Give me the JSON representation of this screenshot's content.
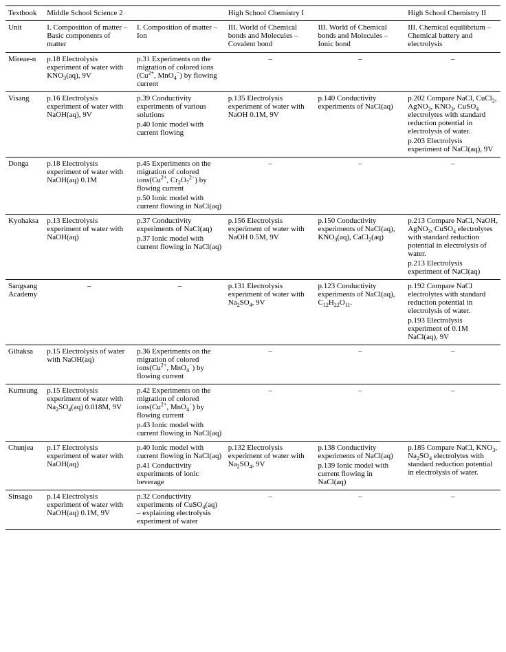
{
  "table": {
    "col_widths": [
      "56px",
      "130px",
      "132px",
      "130px",
      "130px",
      "138px"
    ],
    "header_top": {
      "textbook": "Textbook",
      "groups": [
        {
          "label": "Middle School Science 2",
          "span": 2
        },
        {
          "label": "High School Chemistry I",
          "span": 2
        },
        {
          "label": "High School Chemistry II",
          "span": 1
        }
      ]
    },
    "unit_row": {
      "label": "Unit",
      "cells": [
        "I. Composition of matter – Basic components of matter",
        "I. Composition of matter – Ion",
        "III. World of Chemical bonds and Molecules – Covalent bond",
        "III. World of Chemical bonds and Molecules – Ionic bond",
        "III. Chemical equilibrium – Chemical battery and electrolysis"
      ]
    },
    "rows": [
      {
        "textbook": "Mireae-n",
        "cells": [
          [
            {
              "t": "p.18 Electrolysis experiment of water with KNO"
            },
            {
              "sub": "3"
            },
            {
              "t": "(aq), 9V"
            }
          ],
          [
            {
              "t": "p.31 Experiments on the migration of colored ions (Cu"
            },
            {
              "sup": "2+"
            },
            {
              "t": ", MnO"
            },
            {
              "sub": "4"
            },
            {
              "sup": "−"
            },
            {
              "t": ") by flowing current"
            }
          ],
          "–",
          "–",
          "–"
        ]
      },
      {
        "textbook": "Visang",
        "cells": [
          [
            {
              "t": "p.16 Electrolysis experiment of water with NaOH(aq), 9V"
            }
          ],
          [
            {
              "t": "p.39 Conductivity experiments of various solutions"
            },
            {
              "br": true
            },
            {
              "t": "p.40 Ionic model with current flowing"
            }
          ],
          [
            {
              "t": "p.135 Electrolysis experiment of water with NaOH 0.1M, 9V"
            }
          ],
          [
            {
              "t": "p.140 Conductivity experiments of NaCl(aq)"
            }
          ],
          [
            {
              "t": "p.202 Compare NaCl, CuCl"
            },
            {
              "sub": "2"
            },
            {
              "t": ", AgNO"
            },
            {
              "sub": "3"
            },
            {
              "t": ", KNO"
            },
            {
              "sub": "3"
            },
            {
              "t": ", CuSO"
            },
            {
              "sub": "4"
            },
            {
              "t": " electrolytes with standard reduction potential in electrolysis of water."
            },
            {
              "br": true
            },
            {
              "t": "p.203 Electrolysis experiment of NaCl(aq), 9V"
            }
          ]
        ]
      },
      {
        "textbook": "Donga",
        "cells": [
          [
            {
              "t": "p.18 Electrolysis experiment of water with NaOH(aq) 0.1M"
            }
          ],
          [
            {
              "t": "p.45 Experiments on the migration of colored ions(Cu"
            },
            {
              "sup": "2+"
            },
            {
              "t": ", Cr"
            },
            {
              "sub": "2"
            },
            {
              "t": "O"
            },
            {
              "sub": "7"
            },
            {
              "sup": "2−"
            },
            {
              "t": ") by flowing current"
            },
            {
              "br": true
            },
            {
              "t": "p.50 Ionic model with current flowing in NaCl(aq)"
            }
          ],
          "–",
          "–",
          "–"
        ]
      },
      {
        "textbook": "Kyohaksa",
        "cells": [
          [
            {
              "t": "p.13 Electrolysis experiment of water with NaOH(aq)"
            }
          ],
          [
            {
              "t": "p.37 Conductivity experiments of NaCl(aq)"
            },
            {
              "br": true
            },
            {
              "t": "p.37 Ionic model with current flowing in NaCl(aq)"
            }
          ],
          [
            {
              "t": "p.156 Electrolysis experiment of water with NaOH 0.5M, 9V"
            }
          ],
          [
            {
              "t": "p.150 Conductivity experiments of NaCl(aq), KNO"
            },
            {
              "sub": "3"
            },
            {
              "t": "(aq), CaCl"
            },
            {
              "sub": "2"
            },
            {
              "t": "(aq)"
            }
          ],
          [
            {
              "t": "p.213 Compare NaCl, NaOH, AgNO"
            },
            {
              "sub": "3"
            },
            {
              "t": ", CuSO"
            },
            {
              "sub": "4"
            },
            {
              "t": " electrolytes with standard reduction potential in electrolysis of water."
            },
            {
              "br": true
            },
            {
              "t": "p.213 Electrolysis experiment of NaCl(aq)"
            }
          ]
        ]
      },
      {
        "textbook": "Sangsang Academy",
        "cells": [
          "–",
          "–",
          [
            {
              "t": "p.131 Electrolysis experiment of water with Na"
            },
            {
              "sub": "2"
            },
            {
              "t": "SO"
            },
            {
              "sub": "4"
            },
            {
              "t": ", 9V"
            }
          ],
          [
            {
              "t": "p.123 Conductivity experiments of NaCl(aq), C"
            },
            {
              "sub": "12"
            },
            {
              "t": "H"
            },
            {
              "sub": "22"
            },
            {
              "t": "O"
            },
            {
              "sub": "11"
            },
            {
              "t": "."
            }
          ],
          [
            {
              "t": "p.192 Compare NaCl electrolytes with standard reduction potential in electrolysis of water."
            },
            {
              "br": true
            },
            {
              "t": "p.193 Electrolysis experiment of 0.1M NaCl(aq), 9V"
            }
          ]
        ]
      },
      {
        "textbook": "Gihaksa",
        "cells": [
          [
            {
              "t": "p.15 Electrolysis of water with NaOH(aq)"
            }
          ],
          [
            {
              "t": "p.36 Experiments on the migration of colored ions(Cu"
            },
            {
              "sup": "2+"
            },
            {
              "t": ", MnO"
            },
            {
              "sub": "4"
            },
            {
              "sup": "−"
            },
            {
              "t": ") by flowing current"
            }
          ],
          "–",
          "–",
          "–"
        ]
      },
      {
        "textbook": "Kumsung",
        "cells": [
          [
            {
              "t": "p.15 Electrolysis experiment of water with Na"
            },
            {
              "sub": "2"
            },
            {
              "t": "SO"
            },
            {
              "sub": "4"
            },
            {
              "t": "(aq) 0.018M, 9V"
            }
          ],
          [
            {
              "t": "p.42 Experiments on the migration of colored ions(Cu"
            },
            {
              "sup": "2+"
            },
            {
              "t": ", MnO"
            },
            {
              "sub": "4"
            },
            {
              "sup": "−"
            },
            {
              "t": ") by flowing current"
            },
            {
              "br": true
            },
            {
              "t": "p.43 Ionic model with current flowing in NaCl(aq)"
            }
          ],
          "–",
          "–",
          "–"
        ]
      },
      {
        "textbook": "Chunjea",
        "cells": [
          [
            {
              "t": "p.17 Electrolysis experiment of water with NaOH(aq)"
            }
          ],
          [
            {
              "t": "p.40 Ionic model with current flowing in NaCl(aq)"
            },
            {
              "br": true
            },
            {
              "t": "p.41 Conductivity experiments of ionic beverage"
            }
          ],
          [
            {
              "t": "p.132 Electrolysis experiment of water with Na"
            },
            {
              "sub": "2"
            },
            {
              "t": "SO"
            },
            {
              "sub": "4"
            },
            {
              "t": ", 9V"
            }
          ],
          [
            {
              "t": "p.138 Conductivity experiments of NaCl(aq)"
            },
            {
              "br": true
            },
            {
              "t": "p.139 Ionic model with current flowing in NaCl(aq)"
            }
          ],
          [
            {
              "t": "p.185 Compare NaCl, KNO"
            },
            {
              "sub": "3"
            },
            {
              "t": ", Na"
            },
            {
              "sub": "2"
            },
            {
              "t": "SO"
            },
            {
              "sub": "4"
            },
            {
              "t": " electrolytes with standard reduction potential in electrolysis of water."
            }
          ]
        ]
      },
      {
        "textbook": "Sinsago",
        "cells": [
          [
            {
              "t": "p.14 Electrolysis experiment of water with NaOH(aq) 0.1M, 9V"
            }
          ],
          [
            {
              "t": "p.32 Conductivity experiments of CuSO"
            },
            {
              "sub": "4"
            },
            {
              "t": "(aq) – explaining electrolysis experiment of water"
            }
          ],
          "–",
          "–",
          "–"
        ]
      }
    ]
  },
  "style": {
    "font_family": "Times New Roman",
    "font_size_pt": 9,
    "border_color": "#000000",
    "background_color": "#ffffff",
    "text_color": "#000000"
  }
}
